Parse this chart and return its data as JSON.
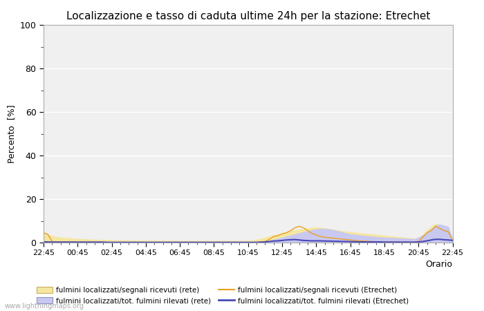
{
  "title": "Localizzazione e tasso di caduta ultime 24h per la stazione: Etrechet",
  "xlabel": "Orario",
  "ylabel": "Percento  [%]",
  "ylim": [
    0,
    100
  ],
  "yticks": [
    0,
    20,
    40,
    60,
    80,
    100
  ],
  "yminor_ticks": [
    10,
    30,
    50,
    70,
    90
  ],
  "x_labels": [
    "22:45",
    "00:45",
    "02:45",
    "04:45",
    "06:45",
    "08:45",
    "10:45",
    "12:45",
    "14:45",
    "16:45",
    "18:45",
    "20:45",
    "22:45"
  ],
  "watermark": "www.lightningmaps.org",
  "bg_color": "#ffffff",
  "plot_bg_color": "#f0f0f0",
  "grid_color": "#ffffff",
  "legend": [
    {
      "label": "fulmini localizzati/segnali ricevuti (rete)",
      "type": "fill",
      "color": "#f5e6a0"
    },
    {
      "label": "fulmini localizzati/segnali ricevuti (Etrechet)",
      "type": "line",
      "color": "#e8a020"
    },
    {
      "label": "fulmini localizzati/tot. fulmini rilevati (rete)",
      "type": "fill",
      "color": "#c8c8f0"
    },
    {
      "label": "fulmini localizzati/tot. fulmini rilevati (Etrechet)",
      "type": "line",
      "color": "#4848b8"
    }
  ],
  "n_points": 97,
  "fill_rete_signal": [
    4.5,
    3.8,
    3.2,
    2.8,
    2.5,
    2.4,
    2.2,
    2.0,
    1.9,
    1.8,
    1.7,
    1.6,
    1.5,
    1.5,
    1.4,
    1.4,
    1.3,
    1.3,
    1.3,
    1.2,
    1.2,
    1.2,
    1.1,
    1.1,
    1.1,
    1.1,
    1.1,
    1.1,
    1.1,
    1.0,
    1.0,
    1.0,
    1.0,
    1.0,
    1.0,
    1.0,
    1.0,
    1.0,
    1.0,
    1.0,
    1.0,
    1.0,
    1.0,
    1.0,
    1.0,
    1.0,
    1.0,
    1.0,
    1.0,
    1.1,
    1.5,
    2.0,
    2.5,
    3.0,
    3.5,
    4.0,
    4.5,
    5.0,
    5.5,
    5.8,
    6.2,
    6.5,
    6.8,
    7.0,
    7.2,
    7.0,
    6.8,
    6.5,
    6.2,
    5.8,
    5.5,
    5.2,
    5.0,
    4.8,
    4.6,
    4.4,
    4.2,
    4.0,
    3.8,
    3.6,
    3.4,
    3.2,
    3.0,
    2.8,
    2.6,
    2.4,
    2.2,
    2.0,
    2.5,
    4.0,
    6.0,
    7.5,
    9.0,
    8.0,
    7.5,
    7.0,
    1.0
  ],
  "line_etrechet_signal": [
    4.5,
    3.8,
    0.5,
    0.3,
    0.4,
    0.3,
    0.3,
    0.3,
    0.2,
    0.2,
    0.2,
    0.2,
    0.2,
    0.2,
    0.2,
    0.1,
    0.1,
    0.1,
    0.1,
    0.1,
    0.1,
    0.1,
    0.1,
    0.1,
    0.1,
    0.1,
    0.1,
    0.1,
    0.1,
    0.1,
    0.1,
    0.1,
    0.1,
    0.1,
    0.1,
    0.1,
    0.1,
    0.1,
    0.1,
    0.1,
    0.1,
    0.1,
    0.1,
    0.1,
    0.1,
    0.1,
    0.1,
    0.1,
    0.1,
    0.1,
    0.1,
    0.3,
    0.5,
    1.5,
    2.8,
    3.2,
    4.0,
    4.5,
    5.5,
    6.8,
    7.5,
    6.8,
    5.5,
    4.2,
    3.5,
    2.8,
    2.5,
    2.2,
    2.0,
    1.8,
    1.6,
    1.4,
    1.2,
    1.0,
    0.8,
    0.7,
    0.6,
    0.5,
    0.4,
    0.4,
    0.3,
    0.3,
    0.3,
    0.2,
    0.2,
    0.2,
    0.2,
    0.1,
    0.5,
    2.5,
    4.5,
    5.5,
    7.5,
    6.5,
    5.5,
    5.0,
    1.0
  ],
  "fill_rete_tot": [
    0.5,
    0.5,
    0.4,
    0.4,
    0.4,
    0.4,
    0.3,
    0.3,
    0.3,
    0.3,
    0.3,
    0.3,
    0.3,
    0.3,
    0.3,
    0.3,
    0.3,
    0.3,
    0.3,
    0.3,
    0.3,
    0.3,
    0.3,
    0.3,
    0.3,
    0.3,
    0.3,
    0.3,
    0.3,
    0.3,
    0.3,
    0.3,
    0.3,
    0.3,
    0.3,
    0.3,
    0.3,
    0.3,
    0.3,
    0.3,
    0.3,
    0.3,
    0.3,
    0.3,
    0.3,
    0.3,
    0.3,
    0.3,
    0.3,
    0.3,
    0.4,
    0.5,
    0.7,
    1.0,
    1.5,
    2.0,
    2.5,
    3.0,
    3.5,
    4.0,
    4.5,
    5.0,
    5.5,
    6.0,
    6.3,
    6.5,
    6.5,
    6.3,
    6.0,
    5.5,
    5.0,
    4.5,
    4.0,
    3.8,
    3.6,
    3.4,
    3.2,
    3.0,
    2.8,
    2.6,
    2.5,
    2.4,
    2.3,
    2.2,
    2.1,
    2.0,
    1.9,
    1.8,
    2.5,
    3.5,
    5.0,
    6.5,
    8.0,
    8.5,
    8.0,
    7.5,
    2.0
  ],
  "line_etrechet_tot": [
    0.3,
    0.3,
    0.2,
    0.2,
    0.2,
    0.2,
    0.2,
    0.2,
    0.2,
    0.2,
    0.2,
    0.2,
    0.2,
    0.2,
    0.2,
    0.1,
    0.1,
    0.1,
    0.1,
    0.1,
    0.1,
    0.1,
    0.1,
    0.1,
    0.1,
    0.1,
    0.1,
    0.1,
    0.1,
    0.1,
    0.1,
    0.1,
    0.1,
    0.1,
    0.1,
    0.1,
    0.1,
    0.1,
    0.1,
    0.1,
    0.1,
    0.1,
    0.1,
    0.1,
    0.1,
    0.1,
    0.1,
    0.1,
    0.1,
    0.1,
    0.1,
    0.2,
    0.3,
    0.5,
    0.7,
    0.8,
    1.0,
    1.2,
    1.3,
    1.4,
    1.2,
    1.0,
    0.9,
    0.8,
    0.8,
    0.8,
    0.7,
    0.7,
    0.6,
    0.6,
    0.5,
    0.5,
    0.4,
    0.4,
    0.3,
    0.3,
    0.3,
    0.3,
    0.3,
    0.3,
    0.2,
    0.2,
    0.2,
    0.2,
    0.2,
    0.2,
    0.2,
    0.2,
    0.3,
    0.5,
    0.8,
    1.2,
    1.5,
    1.5,
    1.3,
    1.2,
    1.0
  ]
}
